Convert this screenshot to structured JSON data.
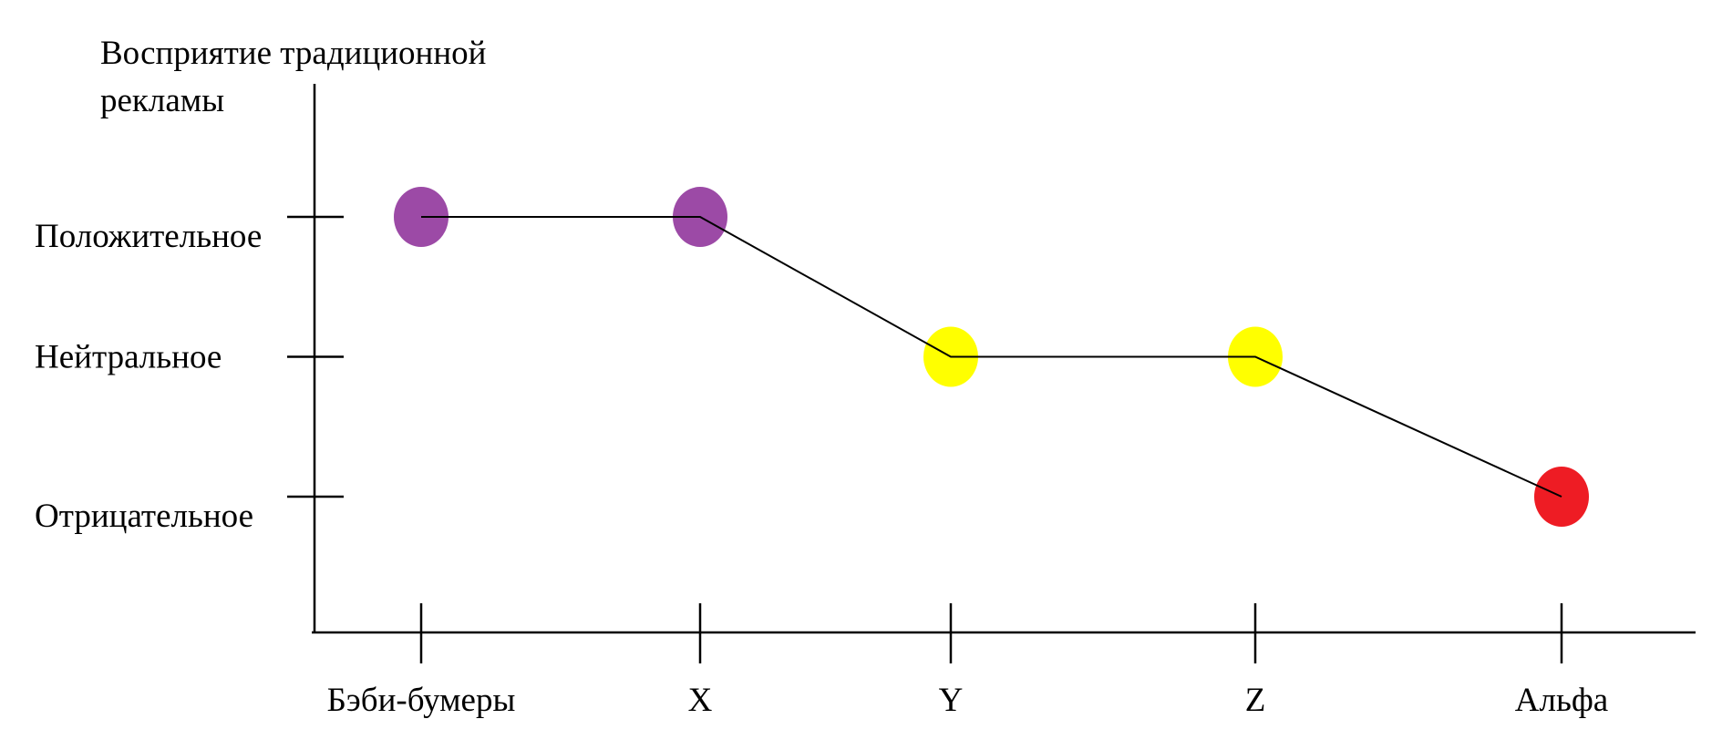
{
  "chart_data": {
    "type": "line",
    "ylabel": [
      "Восприятие традиционной",
      "рекламы"
    ],
    "categories": [
      "Бэби-бумеры",
      "X",
      "Y",
      "Z",
      "Альфа"
    ],
    "y_levels": [
      "Отрицательное",
      "Нейтральное",
      "Положительное"
    ],
    "series": [
      {
        "values": [
          3,
          3,
          2,
          2,
          1
        ],
        "point_colors": [
          "#9c4aa6",
          "#9c4aa6",
          "#ffff00",
          "#ffff00",
          "#ee1c24"
        ]
      }
    ],
    "ylim": [
      0,
      3.5
    ],
    "grid": false,
    "legend": "none"
  }
}
